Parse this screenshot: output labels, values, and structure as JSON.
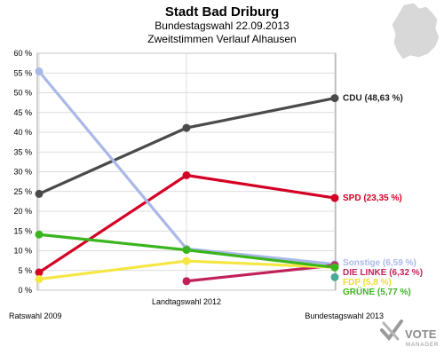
{
  "chart_data": {
    "type": "line",
    "title": "Stadt Bad Driburg",
    "subtitle_1": "Bundestagswahl 22.09.2013",
    "subtitle_2": "Zweitstimmen Verlauf Alhausen",
    "categories": [
      "Ratswahl 2009",
      "Landtagswahl 2012",
      "Bundestagswahl 2013"
    ],
    "y_ticks": [
      "0 %",
      "5 %",
      "10 %",
      "15 %",
      "20 %",
      "25 %",
      "30 %",
      "35 %",
      "40 %",
      "45 %",
      "50 %",
      "55 %",
      "60 %"
    ],
    "ylim": [
      0,
      60
    ],
    "grid": true,
    "series": [
      {
        "name": "CDU",
        "values": [
          24.4,
          41.1,
          48.63
        ],
        "color": "#4a4a4a",
        "label": "CDU (48,63 %)",
        "label_color": "#222222"
      },
      {
        "name": "SPD",
        "values": [
          4.5,
          29.1,
          23.35
        ],
        "color": "#d40024",
        "label": "SPD (23,35 %)",
        "label_color": "#d40024"
      },
      {
        "name": "Sonstige",
        "values": [
          55.4,
          10.5,
          6.59
        ],
        "color": "#aab8e8",
        "label": "Sonstige (6,59 %)",
        "label_color": "#aab8e8"
      },
      {
        "name": "DIE LINKE",
        "values": [
          null,
          2.3,
          6.32
        ],
        "color": "#c0215a",
        "label": "DIE LINKE (6,32 %)",
        "label_color": "#c0215a"
      },
      {
        "name": "FDP",
        "values": [
          2.8,
          7.4,
          5.8
        ],
        "color": "#f5e642",
        "label": "FDP (5,8 %)",
        "label_color": "#f0dc28"
      },
      {
        "name": "GRÜNE",
        "values": [
          14.1,
          10.2,
          5.77
        ],
        "color": "#3ab51e",
        "label": "GRÜNE (5,77 %)",
        "label_color": "#3ab51e"
      },
      {
        "name": "PIRATEN",
        "values": [
          null,
          null,
          3.3
        ],
        "color": "#4aaa96",
        "label": "",
        "label_color": "#4aaa96"
      }
    ]
  },
  "logo": {
    "text": "VOTE",
    "sub": "MANAGER"
  }
}
